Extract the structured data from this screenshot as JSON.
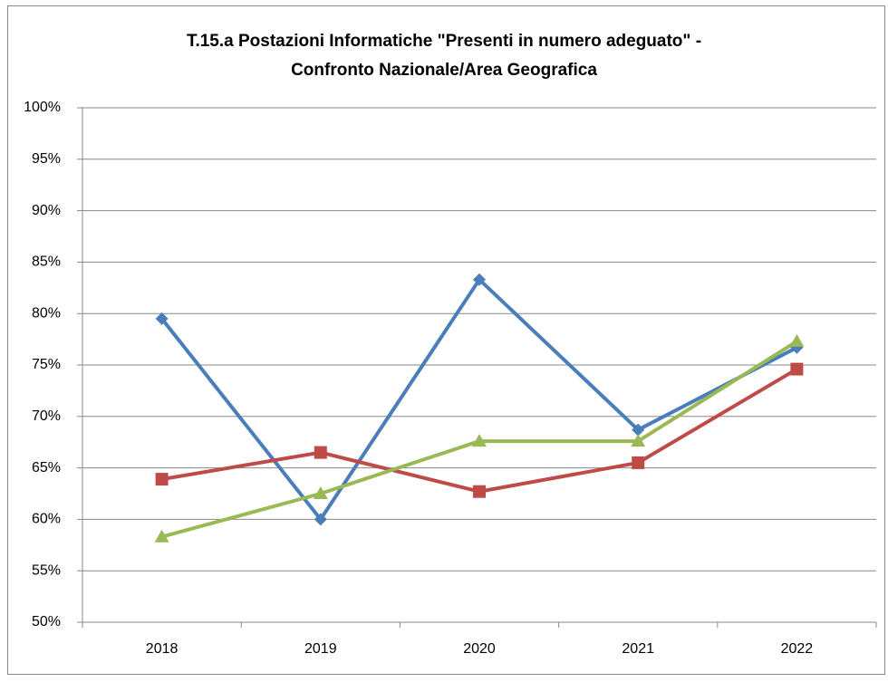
{
  "chart_data": {
    "type": "line",
    "title": [
      "T.15.a Postazioni Informatiche \"Presenti in numero adeguato\" -",
      "Confronto Nazionale/Area Geografica"
    ],
    "categories": [
      "2018",
      "2019",
      "2020",
      "2021",
      "2022"
    ],
    "series": [
      {
        "color": "#4a7ebb",
        "marker": "diamond",
        "values": [
          79.5,
          60.0,
          83.3,
          68.7,
          76.7
        ]
      },
      {
        "color": "#be4b48",
        "marker": "square",
        "values": [
          63.9,
          66.5,
          62.7,
          65.5,
          74.6
        ]
      },
      {
        "color": "#98b954",
        "marker": "triangle",
        "values": [
          58.3,
          62.5,
          67.6,
          67.6,
          77.3
        ]
      }
    ],
    "ylim": [
      50,
      100
    ],
    "yticks": [
      {
        "value": 50,
        "label": "50%"
      },
      {
        "value": 55,
        "label": "55%"
      },
      {
        "value": 60,
        "label": "60%"
      },
      {
        "value": 65,
        "label": "65%"
      },
      {
        "value": 70,
        "label": "70%"
      },
      {
        "value": 75,
        "label": "75%"
      },
      {
        "value": 80,
        "label": "80%"
      },
      {
        "value": 85,
        "label": "85%"
      },
      {
        "value": 90,
        "label": "90%"
      },
      {
        "value": 95,
        "label": "95%"
      },
      {
        "value": 100,
        "label": "100%"
      }
    ],
    "grid": true
  }
}
